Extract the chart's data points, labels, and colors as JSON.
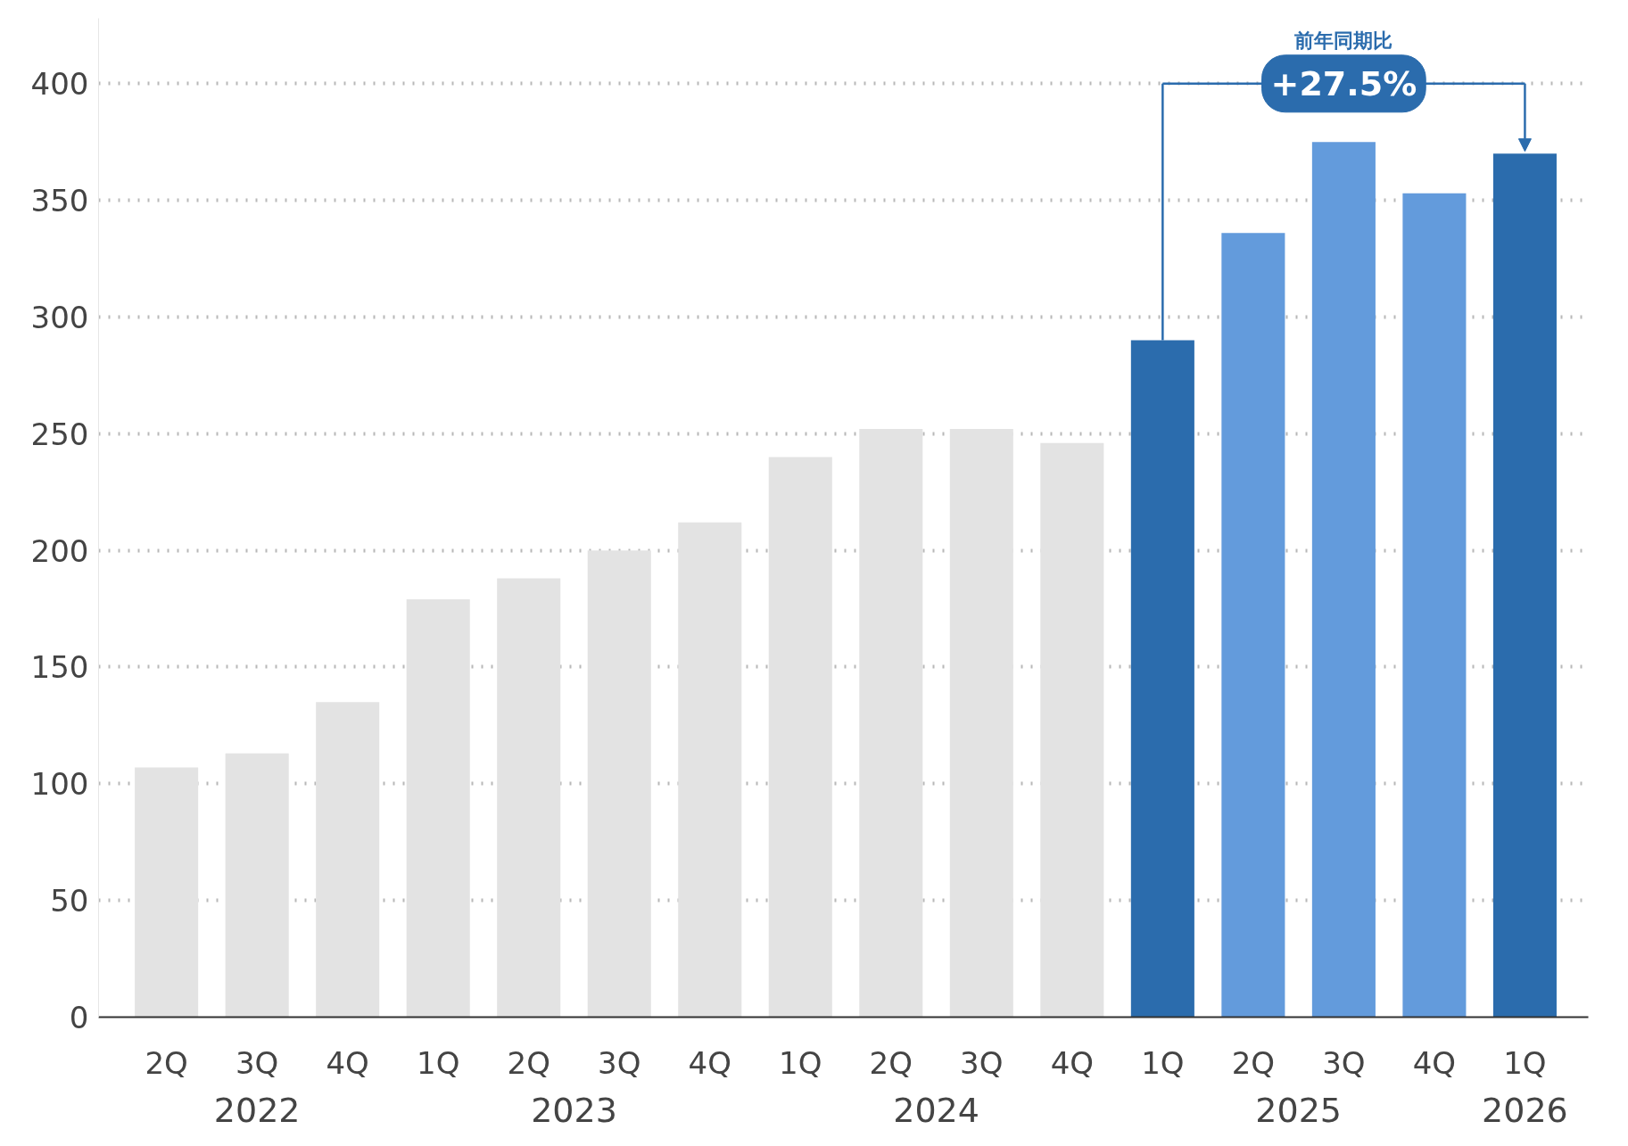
{
  "chart_data": {
    "type": "bar",
    "categories": [
      "2Q",
      "3Q",
      "4Q",
      "1Q",
      "2Q",
      "3Q",
      "4Q",
      "1Q",
      "2Q",
      "3Q",
      "4Q",
      "1Q",
      "2Q",
      "3Q",
      "4Q",
      "1Q"
    ],
    "values": [
      107,
      113,
      135,
      179,
      188,
      200,
      212,
      240,
      252,
      252,
      246,
      290,
      336,
      375,
      353,
      370
    ],
    "colors": [
      "#e3e3e3",
      "#e3e3e3",
      "#e3e3e3",
      "#e3e3e3",
      "#e3e3e3",
      "#e3e3e3",
      "#e3e3e3",
      "#e3e3e3",
      "#e3e3e3",
      "#e3e3e3",
      "#e3e3e3",
      "#2b6cad",
      "#639bdc",
      "#639bdc",
      "#639bdc",
      "#2b6cad"
    ],
    "ylim": [
      0,
      428
    ],
    "yticks": [
      0,
      50,
      100,
      150,
      200,
      250,
      300,
      350,
      400
    ],
    "grid": "y",
    "annotations": [
      "前年同期比",
      "+27.5%",
      "2022",
      "2023",
      "2024",
      "2025",
      "2026"
    ]
  }
}
